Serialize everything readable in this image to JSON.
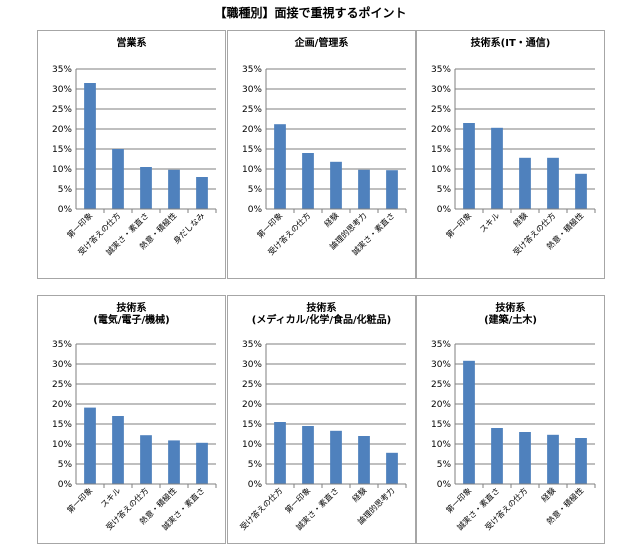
{
  "title": "【職種別】面接で重視するポイント",
  "bar_color": "#4f81bd",
  "chart_data": [
    {
      "type": "bar",
      "title_lines": [
        "営業系"
      ],
      "categories": [
        "第一印象",
        "受け答えの仕方",
        "誠実さ・素直さ",
        "熱意・積極性",
        "身だしなみ"
      ],
      "values": [
        31.5,
        15.0,
        10.5,
        9.8,
        8.0
      ],
      "ylim": [
        0,
        35
      ],
      "yticks": [
        "0%",
        "5%",
        "10%",
        "15%",
        "20%",
        "25%",
        "30%",
        "35%"
      ],
      "grid": true
    },
    {
      "type": "bar",
      "title_lines": [
        "企画/管理系"
      ],
      "categories": [
        "第一印象",
        "受け答えの仕方",
        "経験",
        "論理的思考力",
        "誠実さ・素直さ"
      ],
      "values": [
        21.2,
        14.0,
        11.8,
        9.8,
        9.7
      ],
      "ylim": [
        0,
        35
      ],
      "yticks": [
        "0%",
        "5%",
        "10%",
        "15%",
        "20%",
        "25%",
        "30%",
        "35%"
      ],
      "grid": true
    },
    {
      "type": "bar",
      "title_lines": [
        "技術系(IT・通信)"
      ],
      "categories": [
        "第一印象",
        "スキル",
        "経験",
        "受け答えの仕方",
        "熱意・積極性"
      ],
      "values": [
        21.5,
        20.3,
        12.8,
        12.8,
        8.8
      ],
      "ylim": [
        0,
        35
      ],
      "yticks": [
        "0%",
        "5%",
        "10%",
        "15%",
        "20%",
        "25%",
        "30%",
        "35%"
      ],
      "grid": true
    },
    {
      "type": "bar",
      "title_lines": [
        "技術系",
        "(電気/電子/機械)"
      ],
      "categories": [
        "第一印象",
        "スキル",
        "受け答えの仕方",
        "熱意・積極性",
        "誠実さ・素直さ"
      ],
      "values": [
        19.1,
        17.0,
        12.2,
        10.9,
        10.3
      ],
      "ylim": [
        0,
        35
      ],
      "yticks": [
        "0%",
        "5%",
        "10%",
        "15%",
        "20%",
        "25%",
        "30%",
        "35%"
      ],
      "grid": true
    },
    {
      "type": "bar",
      "title_lines": [
        "技術系",
        "(メディカル/化学/食品/化粧品)"
      ],
      "categories": [
        "受け答えの仕方",
        "第一印象",
        "誠実さ・素直さ",
        "経験",
        "論理的思考力"
      ],
      "values": [
        15.5,
        14.5,
        13.3,
        12.0,
        7.8
      ],
      "ylim": [
        0,
        35
      ],
      "yticks": [
        "0%",
        "5%",
        "10%",
        "15%",
        "20%",
        "25%",
        "30%",
        "35%"
      ],
      "grid": true
    },
    {
      "type": "bar",
      "title_lines": [
        "技術系",
        "(建築/土木)"
      ],
      "categories": [
        "第一印象",
        "誠実さ・素直さ",
        "受け答えの仕方",
        "経験",
        "熱意・積極性"
      ],
      "values": [
        30.8,
        14.0,
        13.0,
        12.3,
        11.5
      ],
      "ylim": [
        0,
        35
      ],
      "yticks": [
        "0%",
        "5%",
        "10%",
        "15%",
        "20%",
        "25%",
        "30%",
        "35%"
      ],
      "grid": true
    }
  ]
}
